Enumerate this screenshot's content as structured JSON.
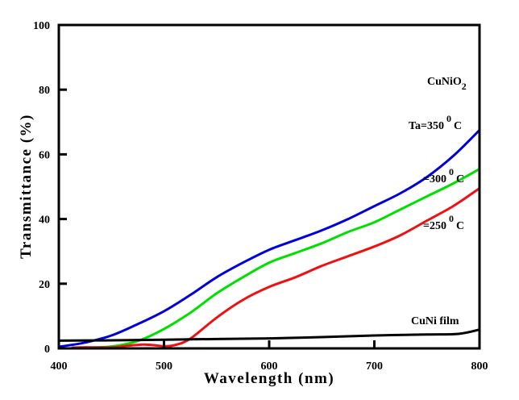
{
  "chart_data": {
    "type": "line",
    "title": "",
    "xlabel": "Wavelength (nm)",
    "ylabel": "Transmittance (%)",
    "xlim": [
      400,
      800
    ],
    "ylim": [
      0,
      100
    ],
    "xticks": [
      400,
      500,
      600,
      700,
      800
    ],
    "yticks": [
      0,
      20,
      40,
      60,
      80,
      100
    ],
    "grid": false,
    "legend": "none",
    "annotations": {
      "compound": {
        "base": "CuNiO",
        "sub": "2"
      },
      "t350": {
        "prefix": "Ta=350",
        "sup": "0",
        "suffix": "C"
      },
      "t300": {
        "prefix": "=300",
        "sup": "0",
        "suffix": "C"
      },
      "t250": {
        "prefix": "=250",
        "sup": "0",
        "suffix": "C"
      },
      "film": "CuNi film"
    },
    "series": [
      {
        "name": "Ta=350 °C",
        "color": "#0000dd",
        "x": [
          400,
          425,
          450,
          475,
          500,
          525,
          550,
          575,
          600,
          625,
          650,
          675,
          700,
          725,
          750,
          775,
          800
        ],
        "y": [
          0.5,
          1.8,
          4.0,
          7.5,
          11.5,
          16.5,
          22.0,
          26.5,
          30.5,
          33.5,
          36.5,
          40.0,
          44.0,
          48.0,
          53.0,
          59.5,
          67.5
        ]
      },
      {
        "name": "300 °C",
        "color": "#00e000",
        "x": [
          413,
          425,
          450,
          475,
          500,
          525,
          550,
          575,
          600,
          625,
          650,
          675,
          700,
          725,
          750,
          775,
          800
        ],
        "y": [
          0.3,
          0.3,
          0.6,
          2.3,
          6.0,
          11.0,
          17.0,
          22.0,
          26.5,
          29.5,
          32.5,
          36.0,
          39.0,
          43.0,
          47.0,
          51.0,
          55.5
        ]
      },
      {
        "name": "250 °C",
        "color": "#ee1111",
        "x": [
          412,
          425,
          450,
          465,
          480,
          490,
          500,
          510,
          525,
          550,
          575,
          600,
          625,
          650,
          675,
          700,
          725,
          750,
          775,
          800
        ],
        "y": [
          0.2,
          0.3,
          0.3,
          0.8,
          1.2,
          1.0,
          0.7,
          1.0,
          3.0,
          9.5,
          15.0,
          19.0,
          22.0,
          25.5,
          28.5,
          31.5,
          35.0,
          39.5,
          44.0,
          49.5
        ]
      },
      {
        "name": "CuNi film",
        "color": "#000000",
        "x": [
          400,
          450,
          500,
          550,
          600,
          650,
          700,
          750,
          780,
          800
        ],
        "y": [
          2.4,
          2.5,
          2.7,
          2.9,
          3.1,
          3.5,
          4.0,
          4.3,
          4.5,
          5.8
        ]
      }
    ]
  }
}
